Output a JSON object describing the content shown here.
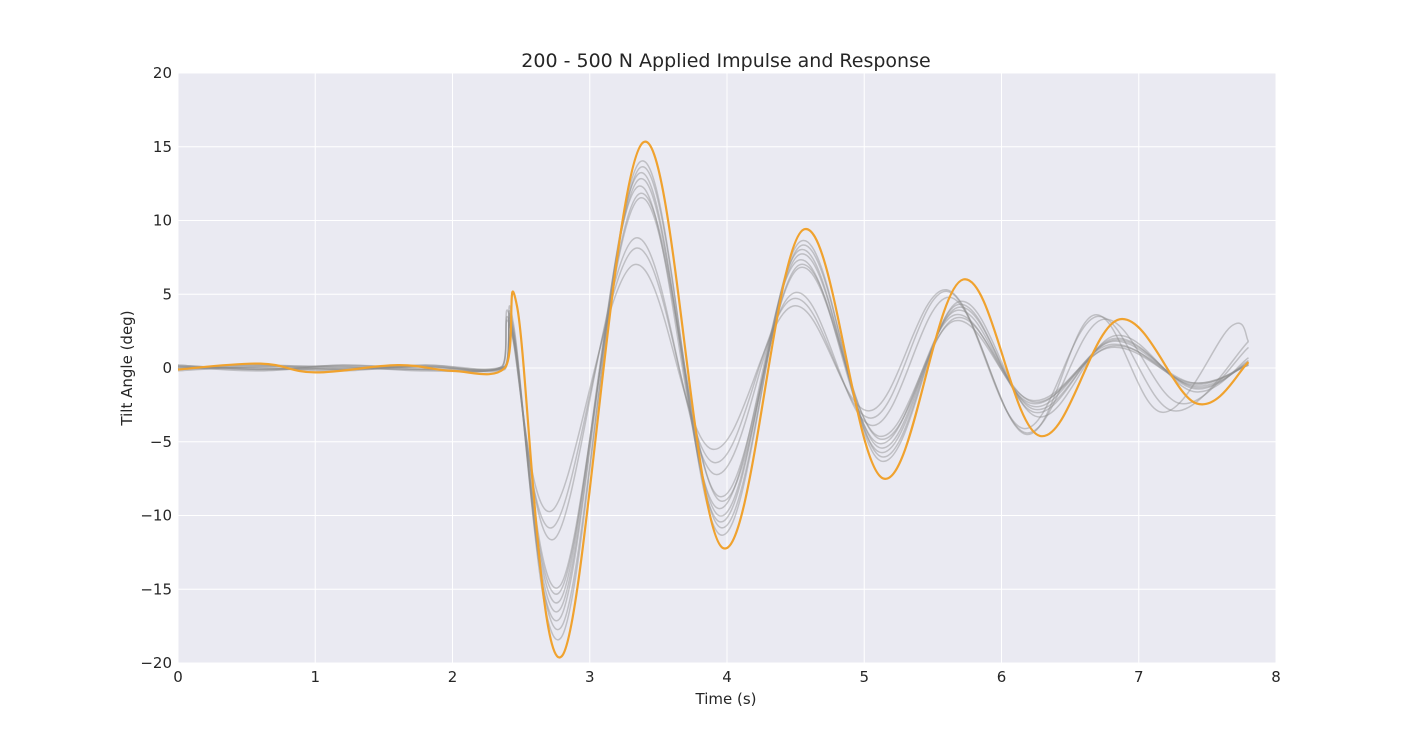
{
  "chart_data": {
    "type": "line",
    "title": "200 - 500 N Applied Impulse and Response",
    "xlabel": "Time (s)",
    "ylabel": "Tilt Angle (deg)",
    "xlim": [
      0,
      8
    ],
    "ylim": [
      -20,
      20
    ],
    "xticks": [
      0,
      1,
      2,
      3,
      4,
      5,
      6,
      7,
      8
    ],
    "yticks": [
      -20,
      -15,
      -10,
      -5,
      0,
      5,
      10,
      15,
      20
    ],
    "xtick_labels": [
      "0",
      "1",
      "2",
      "3",
      "4",
      "5",
      "6",
      "7",
      "8"
    ],
    "ytick_labels": [
      "−20",
      "−15",
      "−10",
      "−5",
      "0",
      "5",
      "10",
      "15",
      "20"
    ],
    "grid": true,
    "legend": "none",
    "colors": {
      "background": "#eaeaf2",
      "grid": "#ffffff",
      "highlight": "#f0a22e",
      "trials": "#8c8c8c"
    },
    "series": [
      {
        "color": "#f0a22e",
        "highlight": true,
        "x": [
          0,
          0.6,
          1.0,
          1.6,
          2.0,
          2.38,
          2.47,
          2.8,
          3.39,
          3.97,
          4.56,
          5.14,
          5.72,
          6.28,
          6.86,
          7.42,
          7.8
        ],
        "y": [
          -0.1,
          0.3,
          -0.3,
          0.2,
          -0.2,
          0.0,
          4.2,
          -19.5,
          15.3,
          -12.2,
          9.4,
          -7.5,
          6.0,
          -4.6,
          3.3,
          -2.4,
          0.4
        ]
      },
      {
        "color": "#8c8c8c",
        "x": [
          0,
          0.6,
          1.2,
          1.8,
          2.38,
          2.44,
          2.79,
          3.37,
          3.95,
          4.54,
          5.12,
          5.69,
          6.26,
          6.83,
          7.4,
          7.8
        ],
        "y": [
          0.1,
          -0.2,
          0.2,
          -0.1,
          0.1,
          3.2,
          -18.3,
          14.0,
          -11.3,
          8.6,
          -6.3,
          4.5,
          -3.3,
          2.2,
          -1.6,
          0.7
        ]
      },
      {
        "color": "#8c8c8c",
        "x": [
          0,
          0.6,
          1.2,
          1.8,
          2.38,
          2.44,
          2.79,
          3.37,
          3.95,
          4.54,
          5.12,
          5.68,
          6.24,
          6.82,
          7.4,
          7.8
        ],
        "y": [
          0.0,
          0.2,
          -0.1,
          0.1,
          0.0,
          2.9,
          -17.6,
          13.6,
          -10.8,
          8.3,
          -6.0,
          4.3,
          -3.0,
          2.0,
          -1.4,
          0.5
        ]
      },
      {
        "color": "#8c8c8c",
        "x": [
          0,
          0.6,
          1.2,
          1.8,
          2.38,
          2.44,
          2.78,
          3.36,
          3.94,
          4.53,
          5.11,
          5.68,
          6.24,
          6.82,
          7.4,
          7.8
        ],
        "y": [
          -0.1,
          0.1,
          0.1,
          -0.2,
          0.1,
          2.7,
          -17.0,
          13.2,
          -10.4,
          8.0,
          -5.7,
          4.1,
          -2.8,
          1.9,
          -1.3,
          0.4
        ]
      },
      {
        "color": "#8c8c8c",
        "x": [
          0,
          0.6,
          1.2,
          1.8,
          2.38,
          2.44,
          2.78,
          3.36,
          3.94,
          4.53,
          5.11,
          5.67,
          6.23,
          6.81,
          7.39,
          7.8
        ],
        "y": [
          0.2,
          -0.1,
          0.0,
          0.1,
          -0.1,
          2.5,
          -16.4,
          12.8,
          -10.0,
          7.7,
          -5.4,
          3.9,
          -2.6,
          1.8,
          -1.2,
          0.3
        ]
      },
      {
        "color": "#8c8c8c",
        "x": [
          0,
          0.6,
          1.2,
          1.8,
          2.38,
          2.44,
          2.78,
          3.35,
          3.93,
          4.52,
          5.1,
          5.66,
          6.22,
          6.8,
          7.38,
          7.8
        ],
        "y": [
          0.0,
          0.0,
          -0.2,
          0.2,
          0.0,
          2.3,
          -15.8,
          12.3,
          -9.5,
          7.3,
          -5.1,
          3.6,
          -2.4,
          1.6,
          -1.1,
          0.3
        ]
      },
      {
        "color": "#8c8c8c",
        "x": [
          0,
          0.6,
          1.2,
          1.8,
          2.38,
          2.44,
          2.78,
          3.36,
          3.95,
          4.53,
          5.11,
          5.67,
          6.23,
          6.81,
          7.39,
          7.8
        ],
        "y": [
          0.1,
          -0.1,
          0.2,
          0.0,
          0.1,
          2.0,
          -15.2,
          11.8,
          -9.0,
          7.0,
          -4.8,
          3.4,
          -2.3,
          1.5,
          -1.0,
          0.2
        ]
      },
      {
        "color": "#8c8c8c",
        "x": [
          0,
          0.6,
          1.2,
          1.8,
          2.38,
          2.44,
          2.78,
          3.36,
          3.94,
          4.53,
          5.1,
          5.66,
          6.22,
          6.8,
          7.38,
          7.8
        ],
        "y": [
          -0.2,
          0.1,
          -0.1,
          0.1,
          0.0,
          2.2,
          -14.8,
          11.5,
          -8.7,
          6.8,
          -4.6,
          3.2,
          -2.2,
          1.4,
          -1.0,
          0.2
        ]
      },
      {
        "color": "#8c8c8c",
        "x": [
          0,
          0.6,
          1.2,
          1.8,
          2.36,
          2.42,
          2.74,
          3.33,
          3.91,
          4.49,
          5.06,
          5.62,
          6.18,
          6.74,
          7.3,
          7.8
        ],
        "y": [
          0.2,
          -0.1,
          0.1,
          -0.1,
          0.1,
          3.4,
          -11.6,
          8.8,
          -7.2,
          5.1,
          -3.9,
          4.8,
          -4.4,
          3.3,
          -2.4,
          1.4
        ]
      },
      {
        "color": "#8c8c8c",
        "x": [
          0,
          0.6,
          1.2,
          1.8,
          2.36,
          2.42,
          2.73,
          3.33,
          3.9,
          4.48,
          5.05,
          5.6,
          6.16,
          6.7,
          7.25,
          7.8
        ],
        "y": [
          0.1,
          0.0,
          -0.1,
          0.2,
          0.0,
          3.0,
          -10.8,
          8.1,
          -6.4,
          4.7,
          -3.4,
          5.2,
          -4.1,
          3.5,
          -2.9,
          1.8
        ]
      },
      {
        "color": "#8c8c8c",
        "x": [
          0,
          0.6,
          1.2,
          1.8,
          2.36,
          2.42,
          2.72,
          3.32,
          3.89,
          4.48,
          5.04,
          5.6,
          6.18,
          6.68,
          7.17,
          7.67,
          7.8
        ],
        "y": [
          -0.1,
          0.2,
          0.0,
          -0.1,
          0.1,
          2.8,
          -9.7,
          7.0,
          -5.5,
          4.2,
          -2.9,
          5.3,
          -4.5,
          3.6,
          -3.0,
          2.8,
          1.8
        ]
      }
    ]
  }
}
